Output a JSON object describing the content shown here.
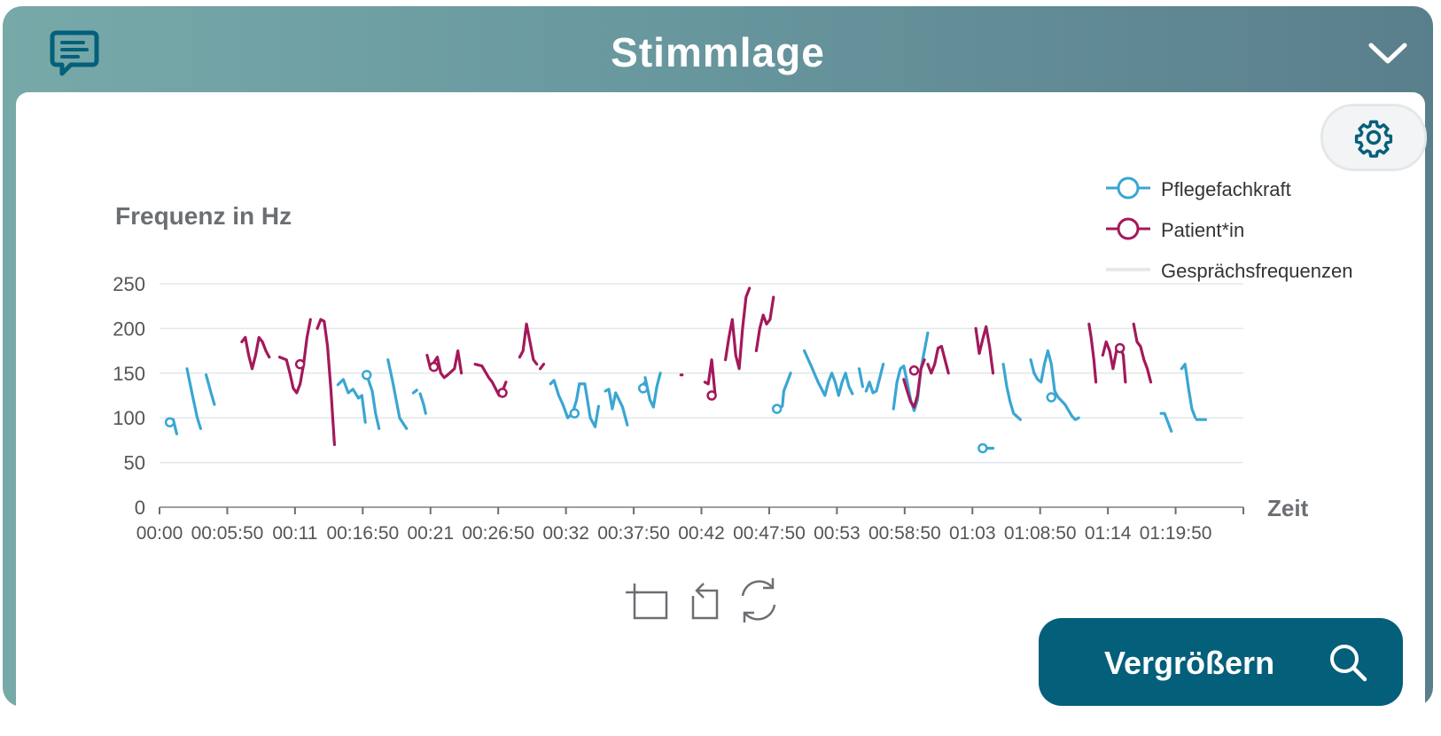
{
  "header": {
    "title": "Stimmlage"
  },
  "toolbar": {
    "zoom_label": "Vergrößern"
  },
  "icons": {
    "chat": "chat-bubble-icon",
    "collapse": "chevron-down-icon",
    "settings": "gear-icon",
    "zoom": "search-icon",
    "crop": "crop-icon",
    "back": "undo-icon",
    "reset": "refresh-icon"
  },
  "colors": {
    "header_gradient_start": "#77a9a9",
    "header_gradient_end": "#5a7f8c",
    "accent": "#04607a",
    "nurse": "#3aa6d2",
    "patient": "#a3195b",
    "conversation": "#e6e9ec"
  },
  "chart_data": {
    "type": "line",
    "ylabel": "Frequenz in Hz",
    "xlabel": "Zeit",
    "ylim": [
      0,
      250
    ],
    "yticks": [
      0,
      50,
      100,
      150,
      200,
      250
    ],
    "xticks": [
      "00:00",
      "00:05:50",
      "00:11",
      "00:16:50",
      "00:21",
      "00:26:50",
      "00:32",
      "00:37:50",
      "00:42",
      "00:47:50",
      "00:53",
      "00:58:50",
      "01:03",
      "01:08:50",
      "01:14",
      "01:19:50"
    ],
    "xlim": [
      0,
      15.8
    ],
    "grid": true,
    "legend_position": "top-right",
    "series": [
      {
        "name": "Pflegefachkraft",
        "color": "#3aa6d2",
        "segments": [
          [
            [
              0.15,
              95
            ],
            [
              0.2,
              98
            ],
            [
              0.25,
              82
            ]
          ],
          [
            [
              0.4,
              155
            ],
            [
              0.48,
              125
            ],
            [
              0.55,
              100
            ],
            [
              0.6,
              88
            ]
          ],
          [
            [
              0.68,
              148
            ],
            [
              0.75,
              128
            ],
            [
              0.8,
              115
            ]
          ],
          [
            [
              2.6,
              137
            ],
            [
              2.68,
              143
            ],
            [
              2.75,
              128
            ],
            [
              2.82,
              132
            ],
            [
              2.9,
              122
            ],
            [
              2.95,
              125
            ],
            [
              3.0,
              95
            ]
          ],
          [
            [
              3.02,
              148
            ],
            [
              3.1,
              130
            ],
            [
              3.15,
              105
            ],
            [
              3.2,
              88
            ]
          ],
          [
            [
              3.33,
              165
            ],
            [
              3.4,
              140
            ],
            [
              3.5,
              100
            ],
            [
              3.6,
              88
            ]
          ],
          [
            [
              3.7,
              128
            ],
            [
              3.75,
              131
            ]
          ],
          [
            [
              3.8,
              127
            ],
            [
              3.85,
              115
            ],
            [
              3.88,
              105
            ]
          ],
          [
            [
              5.7,
              138
            ],
            [
              5.75,
              142
            ],
            [
              5.82,
              125
            ],
            [
              5.88,
              115
            ],
            [
              5.95,
              100
            ],
            [
              6.02,
              105
            ],
            [
              6.08,
              120
            ],
            [
              6.12,
              138
            ],
            [
              6.2,
              138
            ],
            [
              6.28,
              100
            ],
            [
              6.35,
              90
            ],
            [
              6.4,
              113
            ]
          ],
          [
            [
              6.5,
              130
            ],
            [
              6.55,
              132
            ],
            [
              6.6,
              110
            ],
            [
              6.65,
              128
            ],
            [
              6.7,
              120
            ],
            [
              6.75,
              112
            ],
            [
              6.82,
              92
            ]
          ],
          [
            [
              7.0,
              132
            ],
            [
              7.08,
              140
            ]
          ],
          [
            [
              7.08,
              145
            ],
            [
              7.15,
              120
            ],
            [
              7.2,
              112
            ],
            [
              7.25,
              135
            ],
            [
              7.3,
              150
            ]
          ],
          [
            [
              9.0,
              110
            ],
            [
              9.08,
              113
            ],
            [
              9.1,
              130
            ],
            [
              9.15,
              140
            ],
            [
              9.2,
              150
            ]
          ],
          [
            [
              9.4,
              175
            ],
            [
              9.5,
              158
            ],
            [
              9.6,
              140
            ],
            [
              9.7,
              125
            ],
            [
              9.75,
              140
            ],
            [
              9.8,
              150
            ],
            [
              9.85,
              140
            ],
            [
              9.9,
              125
            ],
            [
              9.95,
              140
            ],
            [
              10.0,
              150
            ],
            [
              10.05,
              135
            ],
            [
              10.1,
              127
            ]
          ],
          [
            [
              10.2,
              155
            ],
            [
              10.25,
              135
            ]
          ],
          [
            [
              10.3,
              130
            ],
            [
              10.35,
              140
            ],
            [
              10.4,
              128
            ],
            [
              10.45,
              130
            ],
            [
              10.5,
              145
            ],
            [
              10.55,
              160
            ]
          ],
          [
            [
              10.7,
              110
            ],
            [
              10.75,
              140
            ],
            [
              10.8,
              155
            ],
            [
              10.85,
              158
            ],
            [
              10.9,
              140
            ],
            [
              10.95,
              120
            ],
            [
              11.0,
              108
            ],
            [
              11.05,
              120
            ],
            [
              11.1,
              155
            ],
            [
              11.15,
              175
            ],
            [
              11.2,
              195
            ]
          ],
          [
            [
              12.0,
              66
            ],
            [
              12.15,
              66
            ]
          ],
          [
            [
              12.3,
              160
            ],
            [
              12.35,
              135
            ],
            [
              12.4,
              118
            ],
            [
              12.45,
              105
            ],
            [
              12.55,
              98
            ]
          ],
          [
            [
              12.7,
              165
            ],
            [
              12.75,
              150
            ],
            [
              12.8,
              143
            ],
            [
              12.85,
              140
            ],
            [
              12.9,
              160
            ],
            [
              12.95,
              175
            ],
            [
              13.0,
              160
            ],
            [
              13.05,
              130
            ],
            [
              13.1,
              123
            ],
            [
              13.2,
              115
            ],
            [
              13.3,
              102
            ],
            [
              13.35,
              98
            ],
            [
              13.4,
              100
            ]
          ],
          [
            [
              14.6,
              105
            ],
            [
              14.65,
              105
            ],
            [
              14.7,
              95
            ],
            [
              14.75,
              85
            ]
          ],
          [
            [
              14.9,
              155
            ],
            [
              14.95,
              160
            ],
            [
              15.0,
              133
            ],
            [
              15.05,
              110
            ],
            [
              15.1,
              100
            ]
          ],
          [
            [
              15.12,
              98
            ],
            [
              15.25,
              98
            ]
          ]
        ],
        "markers": [
          [
            0.15,
            95
          ],
          [
            3.02,
            148
          ],
          [
            6.05,
            105
          ],
          [
            7.05,
            133
          ],
          [
            9.0,
            110
          ],
          [
            12.0,
            66
          ],
          [
            13.0,
            123
          ]
        ]
      },
      {
        "name": "Patient*in",
        "color": "#a3195b",
        "segments": [
          [
            [
              1.2,
              185
            ],
            [
              1.25,
              190
            ],
            [
              1.3,
              170
            ],
            [
              1.35,
              155
            ],
            [
              1.4,
              170
            ],
            [
              1.45,
              190
            ],
            [
              1.5,
              185
            ],
            [
              1.55,
              175
            ],
            [
              1.6,
              168
            ]
          ],
          [
            [
              1.75,
              168
            ],
            [
              1.85,
              165
            ],
            [
              1.9,
              150
            ],
            [
              1.95,
              133
            ],
            [
              2.0,
              128
            ],
            [
              2.05,
              138
            ],
            [
              2.1,
              160
            ],
            [
              2.15,
              190
            ],
            [
              2.2,
              210
            ]
          ],
          [
            [
              2.3,
              200
            ],
            [
              2.35,
              210
            ],
            [
              2.4,
              208
            ],
            [
              2.45,
              180
            ],
            [
              2.5,
              130
            ],
            [
              2.55,
              70
            ]
          ],
          [
            [
              3.9,
              170
            ],
            [
              3.95,
              155
            ],
            [
              4.0,
              162
            ],
            [
              4.05,
              168
            ],
            [
              4.1,
              150
            ],
            [
              4.15,
              145
            ],
            [
              4.2,
              148
            ],
            [
              4.3,
              155
            ],
            [
              4.35,
              175
            ],
            [
              4.4,
              150
            ]
          ],
          [
            [
              4.6,
              160
            ],
            [
              4.7,
              158
            ],
            [
              4.8,
              145
            ],
            [
              4.85,
              140
            ],
            [
              4.95,
              125
            ],
            [
              5.0,
              130
            ],
            [
              5.05,
              140
            ]
          ],
          [
            [
              5.25,
              168
            ],
            [
              5.3,
              175
            ],
            [
              5.35,
              205
            ],
            [
              5.4,
              185
            ],
            [
              5.45,
              165
            ],
            [
              5.5,
              160
            ]
          ],
          [
            [
              5.55,
              155
            ],
            [
              5.6,
              160
            ]
          ],
          [
            [
              7.6,
              148
            ],
            [
              7.62,
              148
            ]
          ],
          [
            [
              7.95,
              140
            ],
            [
              8.0,
              138
            ],
            [
              8.05,
              165
            ],
            [
              8.1,
              125
            ]
          ],
          [
            [
              8.25,
              165
            ],
            [
              8.3,
              190
            ],
            [
              8.35,
              210
            ],
            [
              8.4,
              170
            ],
            [
              8.45,
              155
            ],
            [
              8.5,
              200
            ],
            [
              8.55,
              235
            ],
            [
              8.6,
              245
            ]
          ],
          [
            [
              8.7,
              175
            ],
            [
              8.75,
              200
            ],
            [
              8.8,
              215
            ],
            [
              8.85,
              205
            ],
            [
              8.9,
              210
            ],
            [
              8.95,
              235
            ]
          ],
          [
            [
              10.85,
              143
            ],
            [
              10.9,
              130
            ],
            [
              10.95,
              118
            ],
            [
              11.0,
              112
            ],
            [
              11.05,
              125
            ],
            [
              11.1,
              155
            ],
            [
              11.15,
              165
            ]
          ],
          [
            [
              11.2,
              160
            ],
            [
              11.25,
              150
            ],
            [
              11.3,
              160
            ],
            [
              11.35,
              178
            ],
            [
              11.4,
              180
            ],
            [
              11.45,
              165
            ],
            [
              11.5,
              150
            ]
          ],
          [
            [
              11.9,
              200
            ],
            [
              11.95,
              172
            ],
            [
              12.0,
              188
            ],
            [
              12.05,
              202
            ],
            [
              12.1,
              180
            ],
            [
              12.15,
              150
            ]
          ],
          [
            [
              13.55,
              205
            ],
            [
              13.58,
              190
            ],
            [
              13.62,
              165
            ],
            [
              13.65,
              140
            ]
          ],
          [
            [
              13.75,
              170
            ],
            [
              13.8,
              185
            ],
            [
              13.85,
              175
            ],
            [
              13.9,
              155
            ],
            [
              13.95,
              175
            ]
          ],
          [
            [
              14.0,
              180
            ],
            [
              14.05,
              170
            ],
            [
              14.08,
              140
            ]
          ],
          [
            [
              14.2,
              205
            ],
            [
              14.25,
              185
            ],
            [
              14.3,
              180
            ],
            [
              14.35,
              165
            ],
            [
              14.4,
              155
            ],
            [
              14.45,
              140
            ]
          ]
        ],
        "markers": [
          [
            2.05,
            160
          ],
          [
            4.0,
            157
          ],
          [
            5.0,
            128
          ],
          [
            8.05,
            125
          ],
          [
            11.0,
            153
          ],
          [
            14.0,
            178
          ]
        ]
      },
      {
        "name": "Gesprächsfrequenzen",
        "color": "#e6e9ec",
        "segments": [],
        "markers": []
      }
    ]
  }
}
